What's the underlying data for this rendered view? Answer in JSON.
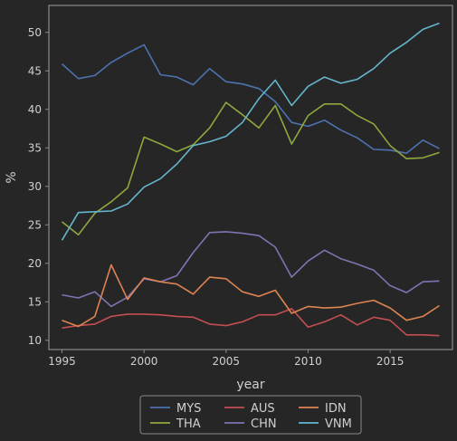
{
  "chart_data": {
    "type": "line",
    "xlabel": "year",
    "ylabel": "%",
    "xlim": [
      1994.2,
      2018.8
    ],
    "ylim": [
      8.8,
      53.5
    ],
    "xticks": [
      1995,
      2000,
      2005,
      2010,
      2015
    ],
    "yticks": [
      10,
      15,
      20,
      25,
      30,
      35,
      40,
      45,
      50
    ],
    "grid": false,
    "legend_position": "bottom-center",
    "x": [
      1995,
      1996,
      1997,
      1998,
      1999,
      2000,
      2001,
      2002,
      2003,
      2004,
      2005,
      2006,
      2007,
      2008,
      2009,
      2010,
      2011,
      2012,
      2013,
      2014,
      2015,
      2016,
      2017,
      2018
    ],
    "series": [
      {
        "name": "MYS",
        "color": "#4c72b0",
        "values": [
          45.9,
          44.0,
          44.4,
          46.1,
          47.3,
          48.4,
          44.5,
          44.2,
          43.2,
          45.3,
          43.6,
          43.3,
          42.7,
          41.0,
          38.3,
          37.8,
          38.6,
          37.3,
          36.3,
          34.8,
          34.7,
          34.3,
          36.0,
          34.9
        ]
      },
      {
        "name": "THA",
        "color": "#8ea83e",
        "values": [
          25.4,
          23.7,
          26.5,
          28.0,
          29.8,
          36.4,
          35.5,
          34.5,
          35.4,
          37.6,
          40.9,
          39.3,
          37.6,
          40.5,
          35.5,
          39.2,
          40.7,
          40.7,
          39.2,
          38.1,
          35.3,
          33.6,
          33.7,
          34.4
        ]
      },
      {
        "name": "AUS",
        "color": "#c44e52",
        "values": [
          11.6,
          11.9,
          12.1,
          13.1,
          13.4,
          13.4,
          13.3,
          13.1,
          13.0,
          12.1,
          11.9,
          12.4,
          13.3,
          13.3,
          14.1,
          11.7,
          12.4,
          13.3,
          12.0,
          13.0,
          12.6,
          10.7,
          10.7,
          10.6
        ]
      },
      {
        "name": "CHN",
        "color": "#8172b2",
        "values": [
          15.9,
          15.5,
          16.3,
          14.4,
          15.6,
          18.0,
          17.6,
          18.4,
          21.4,
          24.0,
          24.1,
          23.9,
          23.6,
          22.1,
          18.2,
          20.3,
          21.7,
          20.6,
          19.9,
          19.1,
          17.1,
          16.2,
          17.6,
          17.7
        ]
      },
      {
        "name": "IDN",
        "color": "#dd8452",
        "values": [
          12.6,
          11.8,
          13.1,
          19.8,
          15.3,
          18.1,
          17.6,
          17.3,
          16.0,
          18.2,
          18.0,
          16.3,
          15.7,
          16.5,
          13.5,
          14.4,
          14.2,
          14.3,
          14.8,
          15.2,
          14.2,
          12.6,
          13.1,
          14.5
        ]
      },
      {
        "name": "VNM",
        "color": "#64b5cd",
        "values": [
          23.0,
          26.6,
          26.7,
          26.8,
          27.7,
          29.9,
          31.0,
          32.9,
          35.3,
          35.8,
          36.5,
          38.3,
          41.4,
          43.8,
          40.5,
          43.0,
          44.2,
          43.4,
          43.9,
          45.3,
          47.3,
          48.7,
          50.4,
          51.2
        ]
      }
    ],
    "legend_order": [
      "MYS",
      "AUS",
      "IDN",
      "THA",
      "CHN",
      "VNM"
    ]
  }
}
